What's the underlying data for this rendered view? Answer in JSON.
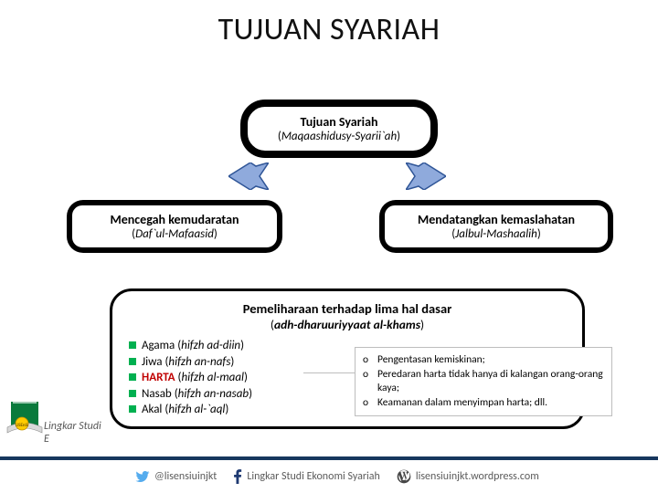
{
  "title": "TUJUAN SYARIAH",
  "top": {
    "line1": "Tujuan Syariah",
    "paren_open": "(",
    "ital": "Maqaashidusy-Syarii`ah",
    "paren_close": ")"
  },
  "left": {
    "line1": "Mencegah kemudaratan",
    "paren_open": "(",
    "ital": "Daf`ul-Mafaasid",
    "paren_close": ")"
  },
  "right": {
    "line1": "Mendatangkan kemaslahatan",
    "paren_open": "(",
    "ital": "Jalbul-Mashaalih",
    "paren_close": ")"
  },
  "card": {
    "h1": "Pemeliharaan terhadap lima hal dasar",
    "h2_open": "(",
    "h2_ital": "adh-dharuuriyyaat al-khams",
    "h2_close": ")",
    "items": [
      {
        "label": "Agama",
        "paren": "hifzh ad-diin"
      },
      {
        "label": "Jiwa",
        "paren": "hifzh an-nafs"
      },
      {
        "label": "HARTA",
        "paren": "hifzh al-maal",
        "highlight": true
      },
      {
        "label": "Nasab",
        "paren": "hifzh an-nasab"
      },
      {
        "label": "Akal",
        "paren": "hifzh al-`aql"
      }
    ]
  },
  "side": {
    "rows": [
      "Pengentasan kemiskinan;",
      "Peredaran harta tidak hanya di kalangan orang-orang kaya;",
      "Keamanan dalam menyimpan harta; dll."
    ]
  },
  "logo_text": "Lingkar Studi E",
  "footer": {
    "twitter": "@lisensiuinjkt",
    "facebook": "Lingkar Studi Ekonomi Syariah",
    "wordpress": "lisensiuinjkt.wordpress.com"
  },
  "colors": {
    "arrow_fill": "#8faadc",
    "arrow_stroke": "#2f5597",
    "green": "#00b050",
    "red": "#c00000",
    "footer_border": "#17375e",
    "twitter": "#55acee",
    "facebook": "#1f3a72",
    "wordpress": "#464646"
  }
}
